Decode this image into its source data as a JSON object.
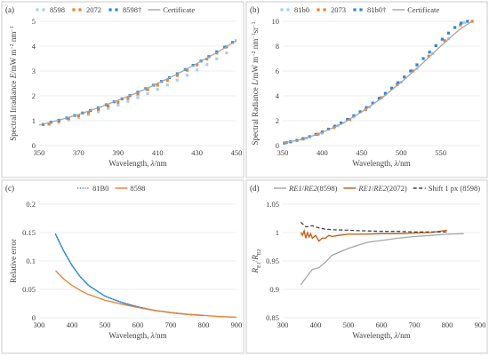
{
  "chart_data": [
    {
      "panel": "(a)",
      "type": "scatter",
      "ylabel": "Spectral Irradiance E/mW m⁻² nm⁻¹",
      "xlabel": "Wavelength, λ/nm",
      "xlim": [
        350,
        450
      ],
      "ylim": [
        0,
        5
      ],
      "xticks": [
        350,
        370,
        390,
        410,
        430,
        450
      ],
      "yticks": [
        0,
        1,
        2,
        3,
        4,
        5
      ],
      "grid": "horizontal",
      "legend_position": "top",
      "series": [
        {
          "name": "8598",
          "style": "marker",
          "color": "#a8cfee",
          "x": [
            355,
            360,
            365,
            370,
            375,
            380,
            385,
            390,
            395,
            400,
            405,
            410,
            415,
            420,
            425,
            430,
            435,
            440,
            445
          ],
          "y": [
            0.85,
            0.93,
            1.03,
            1.13,
            1.24,
            1.36,
            1.49,
            1.63,
            1.78,
            1.93,
            2.09,
            2.26,
            2.44,
            2.63,
            2.83,
            3.04,
            3.26,
            3.49,
            3.73
          ]
        },
        {
          "name": "2072",
          "style": "marker",
          "color": "#f07f2b",
          "x": [
            355,
            360,
            365,
            370,
            375,
            380,
            385,
            390,
            395,
            400,
            405,
            410,
            415,
            420,
            425,
            430,
            435,
            440,
            445,
            450
          ],
          "y": [
            0.88,
            0.98,
            1.09,
            1.2,
            1.32,
            1.45,
            1.59,
            1.74,
            1.9,
            2.07,
            2.25,
            2.43,
            2.62,
            2.82,
            3.03,
            3.25,
            3.48,
            3.72,
            3.97,
            4.22
          ]
        },
        {
          "name": "8598†",
          "style": "marker",
          "color": "#2e86d4",
          "x": [
            352,
            356,
            360,
            364,
            368,
            372,
            376,
            380,
            384,
            388,
            392,
            396,
            400,
            404,
            408,
            412,
            416,
            420,
            424,
            428,
            432,
            436,
            440,
            444,
            448
          ],
          "y": [
            0.85,
            0.94,
            1.02,
            1.11,
            1.21,
            1.31,
            1.41,
            1.52,
            1.64,
            1.76,
            1.88,
            2.01,
            2.15,
            2.29,
            2.43,
            2.58,
            2.73,
            2.89,
            3.06,
            3.23,
            3.4,
            3.58,
            3.77,
            3.96,
            4.15
          ]
        },
        {
          "name": "Certificate",
          "style": "line",
          "color": "#a6a6a6",
          "x": [
            350,
            360,
            370,
            380,
            390,
            400,
            410,
            420,
            430,
            440,
            450
          ],
          "y": [
            0.82,
            1.02,
            1.25,
            1.52,
            1.82,
            2.14,
            2.5,
            2.88,
            3.3,
            3.74,
            4.22
          ]
        }
      ]
    },
    {
      "panel": "(b)",
      "type": "scatter",
      "ylabel": "Spectral Radiance L/mW m⁻² nm⁻¹sr⁻¹",
      "xlabel": "Wavelength, λ/nm",
      "xlim": [
        350,
        600
      ],
      "ylim": [
        0,
        10
      ],
      "xticks": [
        350,
        400,
        450,
        500,
        550
      ],
      "yticks": [
        0,
        2,
        4,
        6,
        8,
        10
      ],
      "grid": "horizontal",
      "legend_position": "top",
      "series": [
        {
          "name": "81b0",
          "style": "marker",
          "color": "#a8cfee",
          "x": [
            360,
            380,
            400,
            420,
            440,
            460,
            480,
            500,
            520,
            540,
            560,
            580
          ],
          "y": [
            0.3,
            0.6,
            1.0,
            1.6,
            2.3,
            3.1,
            4.1,
            5.1,
            6.2,
            7.4,
            8.6,
            9.9
          ]
        },
        {
          "name": "2073",
          "style": "marker",
          "color": "#f07f2b",
          "x": [
            355,
            375,
            395,
            415,
            435,
            455,
            475,
            495,
            515,
            535,
            555,
            575,
            590
          ],
          "y": [
            0.25,
            0.52,
            0.92,
            1.45,
            2.1,
            2.9,
            3.85,
            4.9,
            6.0,
            7.2,
            8.45,
            9.7,
            10
          ]
        },
        {
          "name": "81b0†",
          "style": "marker",
          "color": "#2e86d4",
          "x": [
            352,
            360,
            368,
            376,
            384,
            392,
            400,
            408,
            416,
            424,
            432,
            440,
            448,
            456,
            464,
            472,
            480,
            488,
            496,
            504,
            512,
            520,
            528,
            536,
            544,
            552,
            560,
            568,
            576,
            584
          ],
          "y": [
            0.2,
            0.3,
            0.42,
            0.56,
            0.72,
            0.9,
            1.1,
            1.32,
            1.56,
            1.82,
            2.1,
            2.4,
            2.72,
            3.06,
            3.42,
            3.8,
            4.2,
            4.62,
            5.06,
            5.52,
            6.0,
            6.5,
            7.0,
            7.52,
            8.04,
            8.56,
            9.05,
            9.5,
            9.85,
            10
          ]
        },
        {
          "name": "Certificate",
          "style": "line",
          "color": "#a6a6a6",
          "x": [
            350,
            375,
            400,
            425,
            450,
            475,
            500,
            525,
            550,
            575,
            590
          ],
          "y": [
            0.2,
            0.5,
            1.05,
            1.75,
            2.7,
            3.8,
            5.1,
            6.5,
            8.0,
            9.4,
            10
          ]
        }
      ]
    },
    {
      "panel": "(c)",
      "type": "line",
      "ylabel": "Relative error",
      "xlabel": "Wavelength, λ/nm",
      "xlim": [
        300,
        900
      ],
      "ylim": [
        0,
        0.2
      ],
      "xticks": [
        300,
        400,
        500,
        600,
        700,
        800,
        900
      ],
      "yticks": [
        0,
        0.05,
        0.1,
        0.15,
        0.2
      ],
      "grid": "horizontal",
      "legend_position": "top",
      "series": [
        {
          "name": "81B0",
          "style": "dotted",
          "color": "#2e86d4",
          "x": [
            350,
            375,
            400,
            425,
            450,
            500,
            550,
            600,
            650,
            700,
            750,
            800
          ],
          "y": [
            0.147,
            0.117,
            0.092,
            0.072,
            0.057,
            0.038,
            0.027,
            0.019,
            0.013,
            0.009,
            0.006,
            0.004
          ]
        },
        {
          "name": "8598",
          "style": "solid",
          "color": "#ed7d31",
          "x": [
            350,
            375,
            400,
            425,
            450,
            500,
            550,
            600,
            650,
            700,
            750,
            800,
            850,
            900
          ],
          "y": [
            0.083,
            0.068,
            0.057,
            0.048,
            0.041,
            0.031,
            0.024,
            0.018,
            0.013,
            0.009,
            0.006,
            0.004,
            0.002,
            0.001
          ]
        }
      ]
    },
    {
      "panel": "(d)",
      "type": "line",
      "ylabel": "R_E1/R_E2",
      "xlabel": "Wavelength, λ/nm",
      "xlim": [
        300,
        900
      ],
      "ylim": [
        0.85,
        1.05
      ],
      "xticks": [
        300,
        400,
        500,
        600,
        700,
        800,
        900
      ],
      "yticks": [
        0.85,
        0.9,
        0.95,
        1,
        1.05
      ],
      "grid": "horizontal",
      "legend_position": "top",
      "series": [
        {
          "name": "RE1/RE2(8598)",
          "style": "solid",
          "color": "#a6a6a6",
          "x": [
            355,
            370,
            390,
            410,
            430,
            450,
            470,
            500,
            530,
            560,
            600,
            650,
            700,
            750,
            800,
            850
          ],
          "y": [
            0.908,
            0.92,
            0.935,
            0.938,
            0.948,
            0.96,
            0.965,
            0.972,
            0.978,
            0.983,
            0.986,
            0.99,
            0.993,
            0.995,
            0.997,
            0.998
          ]
        },
        {
          "name": "RE1/RE2(2072)",
          "style": "solid",
          "color": "#c55a11",
          "x": [
            355,
            360,
            365,
            370,
            375,
            380,
            385,
            390,
            400,
            410,
            420,
            430,
            440,
            450,
            470,
            500,
            550,
            600,
            650,
            700,
            750,
            800
          ],
          "y": [
            1.0,
            0.995,
            1.003,
            0.99,
            1.0,
            0.992,
            0.998,
            0.99,
            0.995,
            0.985,
            0.99,
            0.99,
            0.995,
            0.993,
            0.995,
            0.997,
            0.997,
            0.998,
            0.998,
            0.999,
            1.0,
            1.004
          ]
        },
        {
          "name": "Shift 1 px (8598)",
          "style": "dashed",
          "color": "#404040",
          "x": [
            355,
            370,
            390,
            410,
            430,
            450,
            500,
            550,
            600,
            650,
            700,
            750,
            800
          ],
          "y": [
            1.018,
            1.01,
            1.012,
            1.008,
            1.006,
            1.005,
            1.004,
            1.003,
            1.002,
            1.002,
            1.001,
            1.001,
            1.001
          ]
        }
      ]
    }
  ]
}
